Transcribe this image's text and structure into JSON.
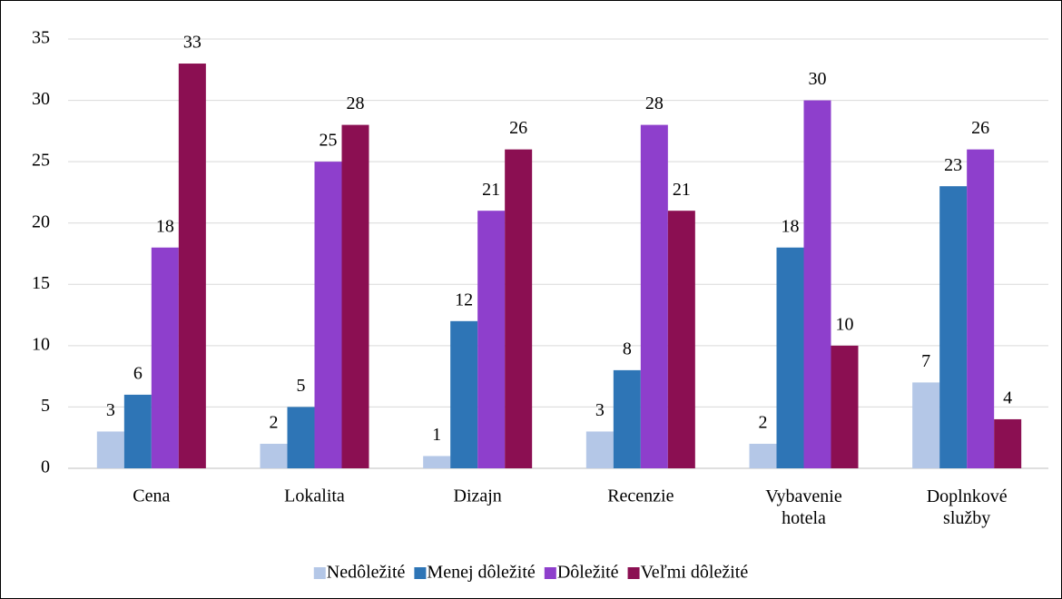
{
  "chart_data": {
    "type": "bar",
    "categories": [
      "Cena",
      "Lokalita",
      "Dizajn",
      "Recenzie",
      "Vybavenie hotela",
      "Doplnkové služby"
    ],
    "series": [
      {
        "name": "Nedôležité",
        "color": "#b4c7e7",
        "values": [
          3,
          2,
          1,
          3,
          2,
          7
        ]
      },
      {
        "name": "Menej dôležité",
        "color": "#2e75b6",
        "values": [
          6,
          5,
          12,
          8,
          18,
          23
        ]
      },
      {
        "name": "Dôležité",
        "color": "#8e3fcc",
        "values": [
          18,
          25,
          21,
          28,
          30,
          26
        ]
      },
      {
        "name": "Veľmi dôležité",
        "color": "#8b0f52",
        "values": [
          33,
          28,
          26,
          21,
          10,
          4
        ]
      }
    ],
    "ylim": [
      0,
      35
    ],
    "yticks": [
      0,
      5,
      10,
      15,
      20,
      25,
      30,
      35
    ],
    "grid": true,
    "legend": "bottom"
  }
}
